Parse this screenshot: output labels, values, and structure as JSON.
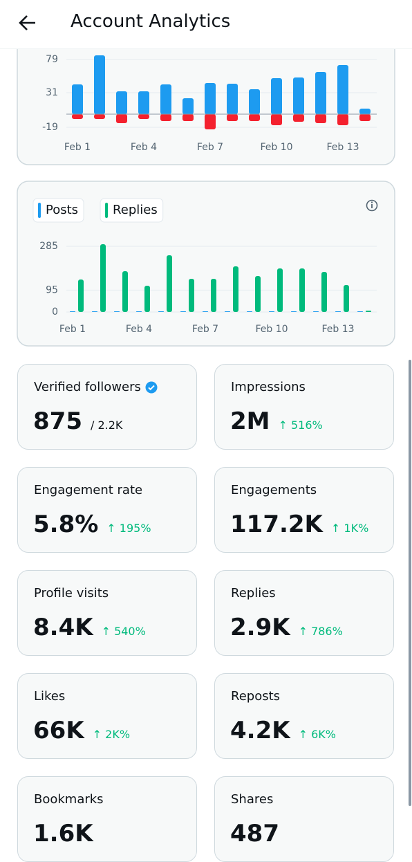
{
  "header": {
    "title": "Account Analytics"
  },
  "charts": [
    {
      "type": "bar",
      "categories": [
        "Feb 1",
        null,
        null,
        "Feb 4",
        null,
        null,
        "Feb 7",
        null,
        null,
        "Feb 10",
        null,
        null,
        "Feb 13",
        null
      ],
      "series": [
        {
          "color": "#1d9bf0",
          "values": [
            43,
            85,
            33,
            33,
            43,
            23,
            45,
            44,
            36,
            52,
            53,
            61,
            71,
            8
          ]
        },
        {
          "color": "#f4212e",
          "values": [
            -7,
            -7,
            -13,
            -7,
            -10,
            -10,
            -22,
            -10,
            -10,
            -16,
            -11,
            -13,
            -16,
            -10
          ]
        }
      ],
      "ylim": [
        -25,
        85
      ],
      "yticks": [
        -19,
        31,
        79
      ],
      "grid": true
    },
    {
      "type": "bar",
      "categories": [
        "Feb 1",
        null,
        null,
        "Feb 4",
        null,
        null,
        "Feb 7",
        null,
        null,
        "Feb 10",
        null,
        null,
        "Feb 13",
        null
      ],
      "series": [
        {
          "name": "Posts",
          "color": "#1d9bf0",
          "values": [
            3,
            3,
            3,
            3,
            3,
            3,
            3,
            3,
            3,
            3,
            3,
            3,
            3,
            3
          ]
        },
        {
          "name": "Replies",
          "color": "#00ba7c",
          "values": [
            141,
            294,
            177,
            114,
            246,
            144,
            144,
            198,
            156,
            189,
            189,
            174,
            117,
            6
          ]
        }
      ],
      "ylim": [
        0,
        300
      ],
      "yticks": [
        0,
        95,
        285
      ],
      "grid": true
    }
  ],
  "stats": [
    {
      "label": "Verified followers",
      "verified": true,
      "value": "875",
      "total": "/ 2.2K"
    },
    {
      "label": "Impressions",
      "value": "2M",
      "change": "↑ 516%"
    },
    {
      "label": "Engagement rate",
      "value": "5.8%",
      "change": "↑ 195%"
    },
    {
      "label": "Engagements",
      "value": "117.2K",
      "change": "↑ 1K%"
    },
    {
      "label": "Profile visits",
      "value": "8.4K",
      "change": "↑ 540%"
    },
    {
      "label": "Replies",
      "value": "2.9K",
      "change": "↑ 786%"
    },
    {
      "label": "Likes",
      "value": "66K",
      "change": "↑ 2K%"
    },
    {
      "label": "Reposts",
      "value": "4.2K",
      "change": "↑ 6K%"
    },
    {
      "label": "Bookmarks",
      "value": "1.6K"
    },
    {
      "label": "Shares",
      "value": "487"
    }
  ]
}
